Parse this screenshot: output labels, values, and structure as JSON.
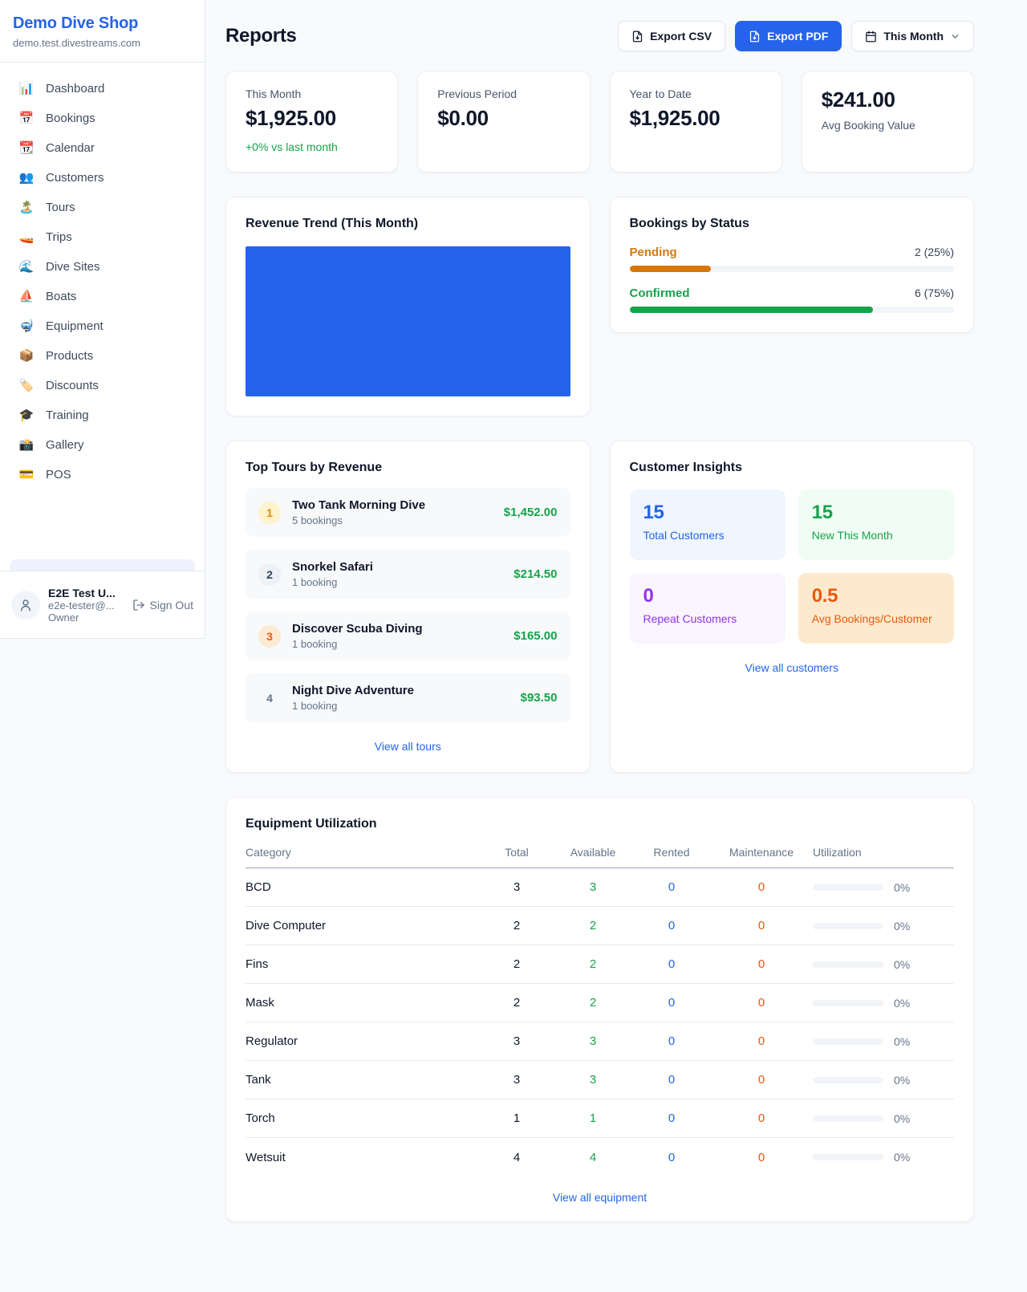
{
  "sidebar": {
    "shop_name": "Demo Dive Shop",
    "shop_domain": "demo.test.divestreams.com",
    "items": [
      {
        "id": "dashboard",
        "icon": "bar-chart-icon",
        "emoji": "📊",
        "label": "Dashboard"
      },
      {
        "id": "bookings",
        "icon": "calendar-date-icon",
        "emoji": "📅",
        "label": "Bookings"
      },
      {
        "id": "calendar",
        "icon": "tear-calendar-icon",
        "emoji": "📆",
        "label": "Calendar"
      },
      {
        "id": "customers",
        "icon": "people-icon",
        "emoji": "👥",
        "label": "Customers"
      },
      {
        "id": "tours",
        "icon": "island-icon",
        "emoji": "🏝️",
        "label": "Tours"
      },
      {
        "id": "trips",
        "icon": "speedboat-icon",
        "emoji": "🚤",
        "label": "Trips"
      },
      {
        "id": "dive-sites",
        "icon": "wave-icon",
        "emoji": "🌊",
        "label": "Dive Sites"
      },
      {
        "id": "boats",
        "icon": "sailboat-icon",
        "emoji": "⛵",
        "label": "Boats"
      },
      {
        "id": "equipment",
        "icon": "dive-mask-icon",
        "emoji": "🤿",
        "label": "Equipment"
      },
      {
        "id": "products",
        "icon": "package-icon",
        "emoji": "📦",
        "label": "Products"
      },
      {
        "id": "discounts",
        "icon": "tag-icon",
        "emoji": "🏷️",
        "label": "Discounts"
      },
      {
        "id": "training",
        "icon": "grad-cap-icon",
        "emoji": "🎓",
        "label": "Training"
      },
      {
        "id": "gallery",
        "icon": "camera-icon",
        "emoji": "📸",
        "label": "Gallery"
      },
      {
        "id": "pos",
        "icon": "credit-card-icon",
        "emoji": "💳",
        "label": "POS"
      }
    ],
    "user": {
      "name": "E2E Test U...",
      "email": "e2e-tester@...",
      "role": "Owner",
      "sign_out_label": "Sign Out"
    }
  },
  "header": {
    "title": "Reports",
    "export_csv_label": "Export CSV",
    "export_pdf_label": "Export PDF",
    "period_label": "This Month"
  },
  "stats": [
    {
      "label": "This Month",
      "value": "$1,925.00",
      "delta": "+0% vs last month"
    },
    {
      "label": "Previous Period",
      "value": "$0.00"
    },
    {
      "label": "Year to Date",
      "value": "$1,925.00"
    },
    {
      "label": "Avg Booking Value",
      "value": "$241.00",
      "value_first": true
    }
  ],
  "revenue_trend": {
    "title": "Revenue Trend (This Month)",
    "bar_color": "#2563eb"
  },
  "bookings_by_status": {
    "title": "Bookings by Status",
    "rows": [
      {
        "label": "Pending",
        "count_text": "2 (25%)",
        "pct": 25,
        "color": "#d97706"
      },
      {
        "label": "Confirmed",
        "count_text": "6 (75%)",
        "pct": 75,
        "color": "#16a34a"
      }
    ]
  },
  "top_tours": {
    "title": "Top Tours by Revenue",
    "rows": [
      {
        "rank": "1",
        "name": "Two Tank Morning Dive",
        "bookings": "5 bookings",
        "revenue": "$1,452.00"
      },
      {
        "rank": "2",
        "name": "Snorkel Safari",
        "bookings": "1 booking",
        "revenue": "$214.50"
      },
      {
        "rank": "3",
        "name": "Discover Scuba Diving",
        "bookings": "1 booking",
        "revenue": "$165.00"
      },
      {
        "rank": "4",
        "name": "Night Dive Adventure",
        "bookings": "1 booking",
        "revenue": "$93.50"
      }
    ],
    "view_all_label": "View all tours"
  },
  "customer_insights": {
    "title": "Customer Insights",
    "tiles": [
      {
        "value": "15",
        "label": "Total Customers",
        "bg": "#eff6ff",
        "color": "#2563eb"
      },
      {
        "value": "15",
        "label": "New This Month",
        "bg": "#f0fdf4",
        "color": "#16a34a"
      },
      {
        "value": "0",
        "label": "Repeat Customers",
        "bg": "#faf5ff",
        "color": "#9333ea"
      },
      {
        "value": "0.5",
        "label": "Avg Bookings/Customer",
        "bg": "#fdeace",
        "color": "#ea580c"
      }
    ],
    "view_all_label": "View all customers"
  },
  "equipment": {
    "title": "Equipment Utilization",
    "columns": [
      "Category",
      "Total",
      "Available",
      "Rented",
      "Maintenance",
      "Utilization"
    ],
    "rows": [
      {
        "category": "BCD",
        "total": "3",
        "available": "3",
        "rented": "0",
        "maintenance": "0",
        "utilization": "0%",
        "utilization_pct": 0
      },
      {
        "category": "Dive Computer",
        "total": "2",
        "available": "2",
        "rented": "0",
        "maintenance": "0",
        "utilization": "0%",
        "utilization_pct": 0
      },
      {
        "category": "Fins",
        "total": "2",
        "available": "2",
        "rented": "0",
        "maintenance": "0",
        "utilization": "0%",
        "utilization_pct": 0
      },
      {
        "category": "Mask",
        "total": "2",
        "available": "2",
        "rented": "0",
        "maintenance": "0",
        "utilization": "0%",
        "utilization_pct": 0
      },
      {
        "category": "Regulator",
        "total": "3",
        "available": "3",
        "rented": "0",
        "maintenance": "0",
        "utilization": "0%",
        "utilization_pct": 0
      },
      {
        "category": "Tank",
        "total": "3",
        "available": "3",
        "rented": "0",
        "maintenance": "0",
        "utilization": "0%",
        "utilization_pct": 0
      },
      {
        "category": "Torch",
        "total": "1",
        "available": "1",
        "rented": "0",
        "maintenance": "0",
        "utilization": "0%",
        "utilization_pct": 0
      },
      {
        "category": "Wetsuit",
        "total": "4",
        "available": "4",
        "rented": "0",
        "maintenance": "0",
        "utilization": "0%",
        "utilization_pct": 0
      }
    ],
    "view_all_label": "View all equipment"
  }
}
